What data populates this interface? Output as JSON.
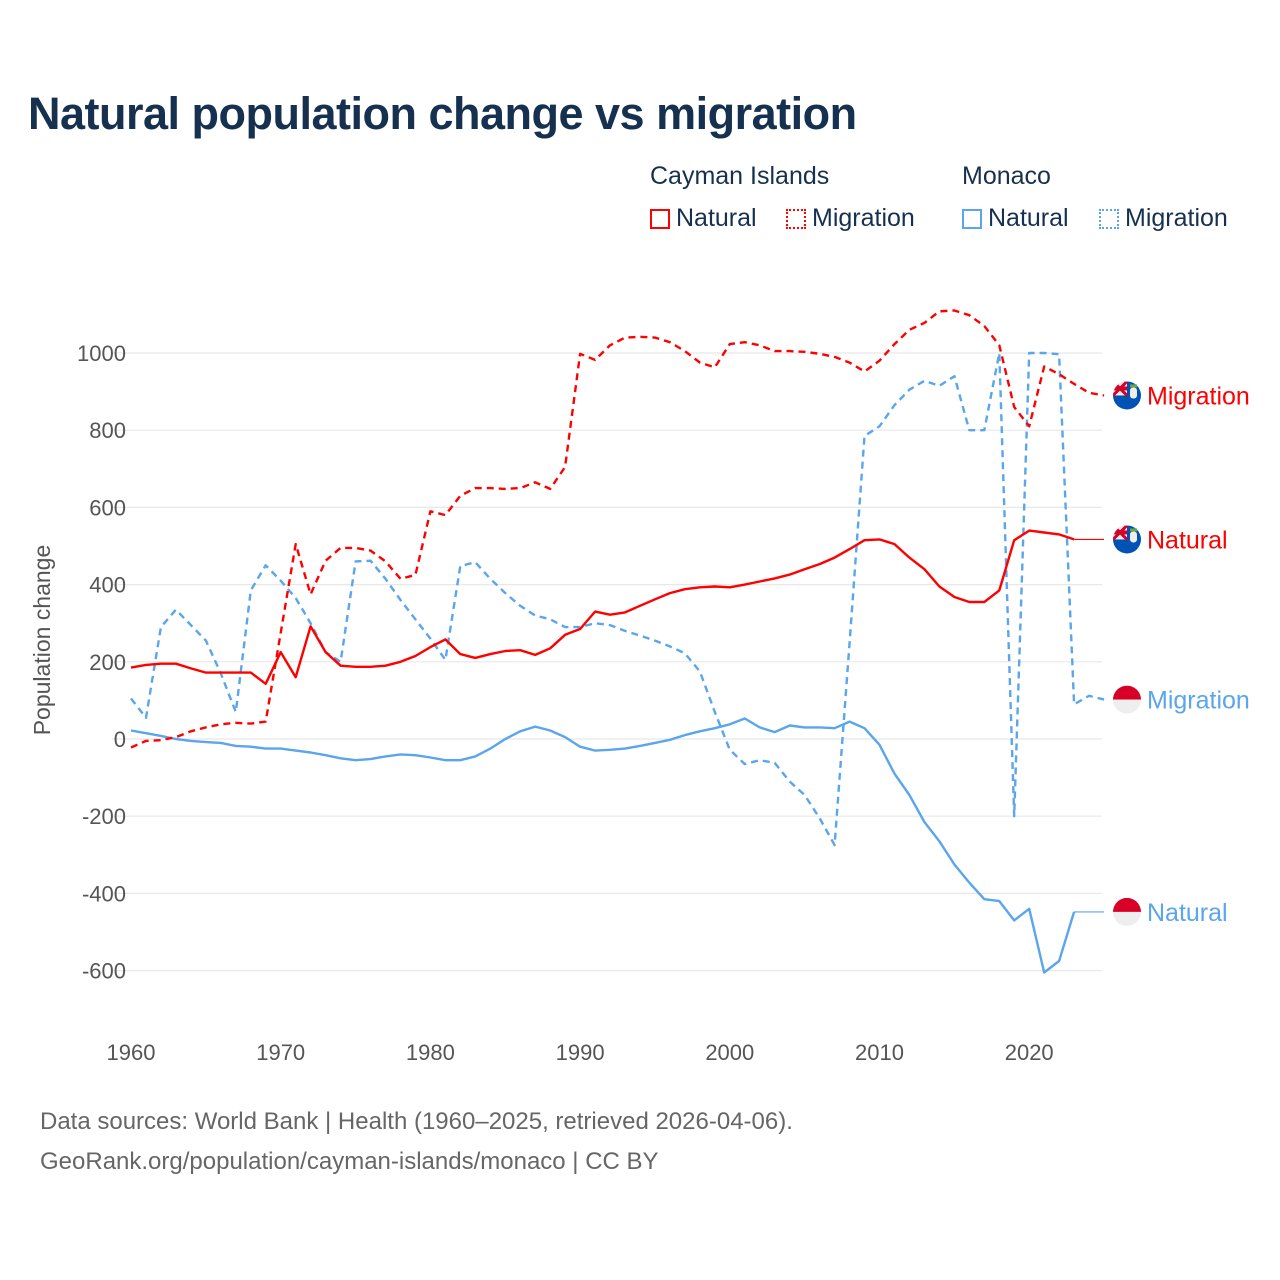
{
  "chart_data": {
    "type": "line",
    "title": "Natural population change vs migration",
    "xlabel": "",
    "ylabel": "Population change",
    "xlim": [
      1960,
      2025
    ],
    "ylim": [
      -700,
      1150
    ],
    "x_ticks": [
      "1960",
      "1970",
      "1980",
      "1990",
      "2000",
      "2010",
      "2020"
    ],
    "y_ticks": [
      "-600",
      "-400",
      "-200",
      "0",
      "200",
      "400",
      "600",
      "800",
      "1000"
    ],
    "grid": true,
    "legend_groups": [
      {
        "name": "Cayman Islands",
        "items": [
          "Natural",
          "Migration"
        ]
      },
      {
        "name": "Monaco",
        "items": [
          "Natural",
          "Migration"
        ]
      }
    ],
    "x": [
      1960,
      1961,
      1962,
      1963,
      1964,
      1965,
      1966,
      1967,
      1968,
      1969,
      1970,
      1971,
      1972,
      1973,
      1974,
      1975,
      1976,
      1977,
      1978,
      1979,
      1980,
      1981,
      1982,
      1983,
      1984,
      1985,
      1986,
      1987,
      1988,
      1989,
      1990,
      1991,
      1992,
      1993,
      1994,
      1995,
      1996,
      1997,
      1998,
      1999,
      2000,
      2001,
      2002,
      2003,
      2004,
      2005,
      2006,
      2007,
      2008,
      2009,
      2010,
      2011,
      2012,
      2013,
      2014,
      2015,
      2016,
      2017,
      2018,
      2019,
      2020,
      2021,
      2022,
      2023,
      2024,
      2025
    ],
    "series": [
      {
        "name": "Natural",
        "country": "Cayman Islands",
        "color": "#ff0000",
        "dash": false,
        "end_label": "Natural",
        "values": [
          185,
          192,
          195,
          195,
          183,
          172,
          172,
          172,
          172,
          143,
          225,
          160,
          292,
          225,
          190,
          187,
          187,
          190,
          200,
          215,
          238,
          258,
          220,
          210,
          220,
          228,
          230,
          218,
          235,
          270,
          285,
          330,
          322,
          328,
          345,
          362,
          378,
          388,
          393,
          395,
          393,
          400,
          408,
          416,
          426,
          440,
          453,
          470,
          492,
          515,
          517,
          505,
          470,
          440,
          395,
          368,
          355,
          355,
          385,
          515,
          540,
          535,
          530,
          517,
          null,
          null
        ]
      },
      {
        "name": "Migration",
        "country": "Cayman Islands",
        "color": "#ff0000",
        "dash": true,
        "end_label": "Migration",
        "values": [
          -22,
          -5,
          -3,
          5,
          20,
          30,
          38,
          42,
          40,
          45,
          275,
          505,
          375,
          462,
          495,
          495,
          488,
          460,
          415,
          425,
          590,
          580,
          630,
          650,
          650,
          648,
          650,
          665,
          648,
          705,
          998,
          982,
          1020,
          1040,
          1042,
          1040,
          1028,
          1005,
          975,
          963,
          1023,
          1028,
          1020,
          1005,
          1005,
          1003,
          998,
          990,
          975,
          952,
          980,
          1023,
          1060,
          1078,
          1108,
          1110,
          1098,
          1070,
          1020,
          860,
          810,
          965,
          945,
          920,
          897,
          890
        ]
      },
      {
        "name": "Natural",
        "country": "Monaco",
        "color": "#5aa5eb",
        "dash": false,
        "end_label": "Natural",
        "values": [
          22,
          15,
          8,
          0,
          -5,
          -8,
          -10,
          -18,
          -20,
          -25,
          -25,
          -30,
          -35,
          -42,
          -50,
          -55,
          -52,
          -45,
          -40,
          -42,
          -48,
          -55,
          -55,
          -45,
          -25,
          0,
          20,
          32,
          22,
          5,
          -20,
          -30,
          -28,
          -25,
          -18,
          -10,
          -2,
          10,
          20,
          28,
          38,
          53,
          30,
          18,
          35,
          30,
          30,
          28,
          45,
          28,
          -15,
          -90,
          -145,
          -215,
          -265,
          -325,
          -372,
          -415,
          -420,
          -470,
          -440,
          -605,
          -575,
          -448,
          null,
          null
        ]
      },
      {
        "name": "Migration",
        "country": "Monaco",
        "color": "#5aa5eb",
        "dash": true,
        "end_label": "Migration",
        "values": [
          105,
          55,
          290,
          335,
          295,
          255,
          170,
          70,
          385,
          450,
          410,
          365,
          300,
          225,
          200,
          460,
          462,
          415,
          360,
          310,
          260,
          205,
          448,
          458,
          415,
          378,
          345,
          320,
          310,
          290,
          290,
          300,
          295,
          280,
          268,
          255,
          240,
          222,
          175,
          70,
          -28,
          -65,
          -55,
          -62,
          -110,
          -145,
          -205,
          -275,
          250,
          785,
          810,
          865,
          905,
          928,
          915,
          940,
          800,
          800,
          1000,
          -200,
          1000,
          1000,
          997,
          90,
          112,
          102
        ]
      }
    ]
  },
  "footer": {
    "line1": "Data sources: World Bank | Health (1960–2025, retrieved 2026-04-06).",
    "line2": "GeoRank.org/population/cayman-islands/monaco | CC BY"
  }
}
